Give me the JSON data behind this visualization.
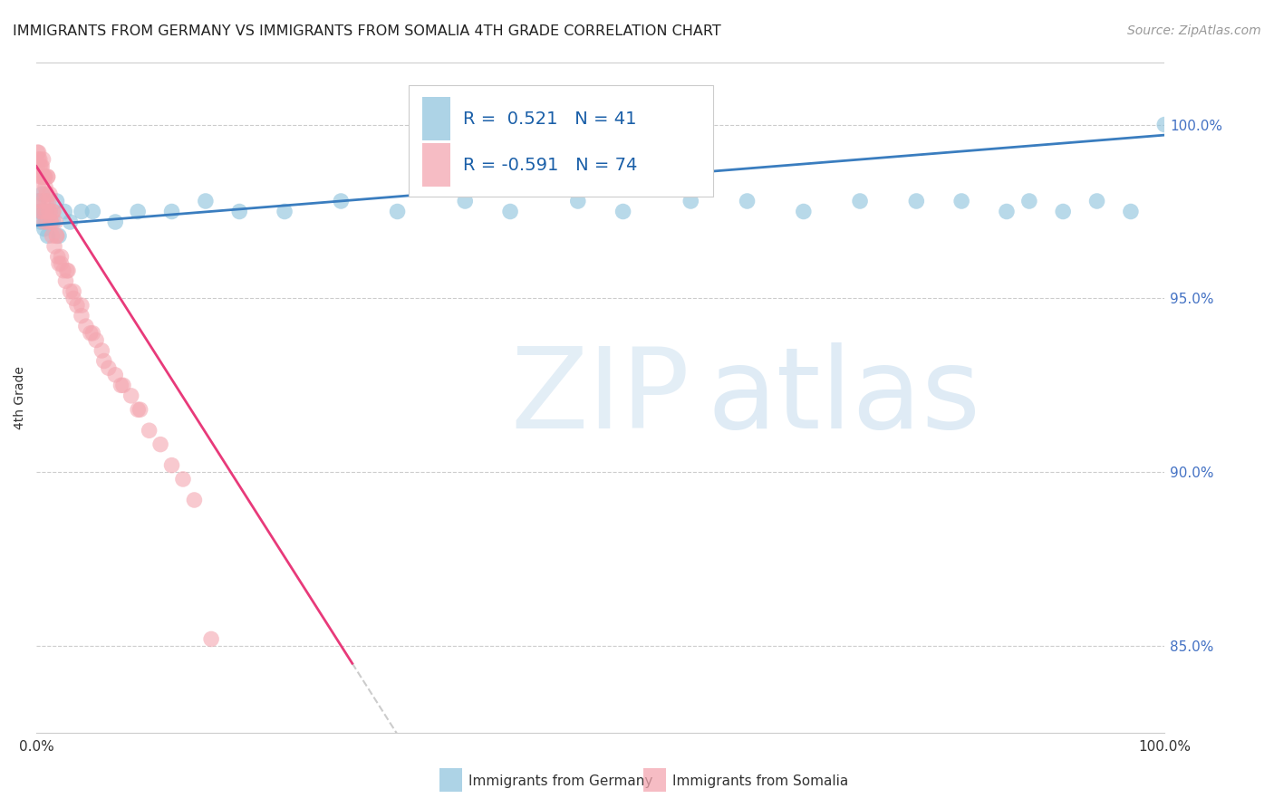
{
  "title": "IMMIGRANTS FROM GERMANY VS IMMIGRANTS FROM SOMALIA 4TH GRADE CORRELATION CHART",
  "source": "Source: ZipAtlas.com",
  "ylabel": "4th Grade",
  "xmin": 0.0,
  "xmax": 1.0,
  "ymin": 0.825,
  "ymax": 1.018,
  "yticks": [
    0.85,
    0.9,
    0.95,
    1.0
  ],
  "ytick_labels": [
    "85.0%",
    "90.0%",
    "95.0%",
    "100.0%"
  ],
  "xticks": [
    0.0,
    0.1,
    0.2,
    0.3,
    0.4,
    0.5,
    0.6,
    0.7,
    0.8,
    0.9,
    1.0
  ],
  "xtick_labels": [
    "0.0%",
    "",
    "",
    "",
    "",
    "",
    "",
    "",
    "",
    "",
    "100.0%"
  ],
  "germany_color": "#92c5de",
  "somalia_color": "#f4a6b0",
  "germany_line_color": "#3a7dbf",
  "somalia_line_color": "#e83a7a",
  "germany_R": 0.521,
  "germany_N": 41,
  "somalia_R": -0.591,
  "somalia_N": 74,
  "legend_label_germany": "Immigrants from Germany",
  "legend_label_somalia": "Immigrants from Somalia",
  "germany_points_x": [
    0.002,
    0.003,
    0.004,
    0.005,
    0.006,
    0.007,
    0.008,
    0.009,
    0.01,
    0.012,
    0.015,
    0.018,
    0.02,
    0.025,
    0.03,
    0.04,
    0.05,
    0.07,
    0.09,
    0.12,
    0.15,
    0.18,
    0.22,
    0.27,
    0.32,
    0.38,
    0.42,
    0.48,
    0.52,
    0.58,
    0.63,
    0.68,
    0.73,
    0.78,
    0.82,
    0.86,
    0.88,
    0.91,
    0.94,
    0.97,
    1.0
  ],
  "germany_points_y": [
    0.978,
    0.975,
    0.972,
    0.98,
    0.975,
    0.97,
    0.972,
    0.975,
    0.968,
    0.975,
    0.972,
    0.978,
    0.968,
    0.975,
    0.972,
    0.975,
    0.975,
    0.972,
    0.975,
    0.975,
    0.978,
    0.975,
    0.975,
    0.978,
    0.975,
    0.978,
    0.975,
    0.978,
    0.975,
    0.978,
    0.978,
    0.975,
    0.978,
    0.978,
    0.978,
    0.975,
    0.978,
    0.975,
    0.978,
    0.975,
    1.0
  ],
  "somalia_points_x": [
    0.001,
    0.002,
    0.002,
    0.003,
    0.003,
    0.004,
    0.004,
    0.005,
    0.005,
    0.006,
    0.006,
    0.007,
    0.007,
    0.008,
    0.008,
    0.009,
    0.01,
    0.01,
    0.011,
    0.012,
    0.013,
    0.014,
    0.015,
    0.016,
    0.017,
    0.018,
    0.019,
    0.02,
    0.022,
    0.024,
    0.026,
    0.028,
    0.03,
    0.033,
    0.036,
    0.04,
    0.044,
    0.048,
    0.053,
    0.058,
    0.064,
    0.07,
    0.077,
    0.084,
    0.092,
    0.1,
    0.11,
    0.12,
    0.13,
    0.14,
    0.001,
    0.002,
    0.003,
    0.004,
    0.005,
    0.006,
    0.007,
    0.008,
    0.009,
    0.01,
    0.011,
    0.012,
    0.013,
    0.015,
    0.018,
    0.022,
    0.027,
    0.033,
    0.04,
    0.05,
    0.06,
    0.075,
    0.09,
    0.155
  ],
  "somalia_points_y": [
    0.988,
    0.99,
    0.982,
    0.988,
    0.978,
    0.985,
    0.975,
    0.988,
    0.975,
    0.985,
    0.978,
    0.985,
    0.972,
    0.985,
    0.975,
    0.978,
    0.985,
    0.972,
    0.975,
    0.98,
    0.972,
    0.968,
    0.975,
    0.965,
    0.972,
    0.968,
    0.962,
    0.96,
    0.96,
    0.958,
    0.955,
    0.958,
    0.952,
    0.95,
    0.948,
    0.945,
    0.942,
    0.94,
    0.938,
    0.935,
    0.93,
    0.928,
    0.925,
    0.922,
    0.918,
    0.912,
    0.908,
    0.902,
    0.898,
    0.892,
    0.992,
    0.992,
    0.99,
    0.988,
    0.985,
    0.99,
    0.985,
    0.982,
    0.98,
    0.985,
    0.978,
    0.975,
    0.972,
    0.975,
    0.968,
    0.962,
    0.958,
    0.952,
    0.948,
    0.94,
    0.932,
    0.925,
    0.918,
    0.852
  ]
}
